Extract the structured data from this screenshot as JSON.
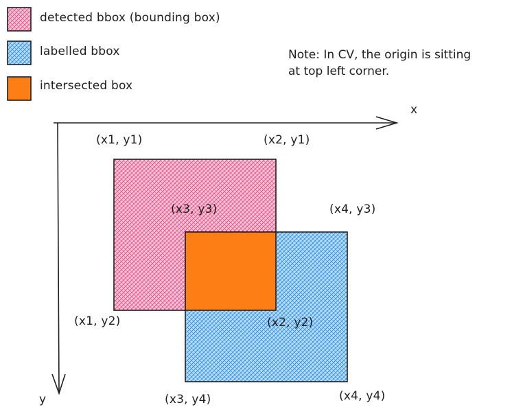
{
  "colors": {
    "detected": "#e64980",
    "labelled": "#228be6",
    "intersected": "#fd7e14",
    "stroke": "#1e1e1e"
  },
  "legend": {
    "detected": "detected bbox (bounding box)",
    "labelled": "labelled bbox",
    "intersected": "intersected box"
  },
  "note": {
    "line1": "Note: In CV, the origin is sitting",
    "line2": "at top left corner."
  },
  "axes": {
    "x": "x",
    "y": "y"
  },
  "points": {
    "x1y1": "(x1, y1)",
    "x2y1": "(x2, y1)",
    "x3y3": "(x3, y3)",
    "x4y3": "(x4, y3)",
    "x1y2": "(x1, y2)",
    "x2y2": "(x2, y2)",
    "x3y4": "(x3, y4)",
    "x4y4": "(x4, y4)"
  }
}
